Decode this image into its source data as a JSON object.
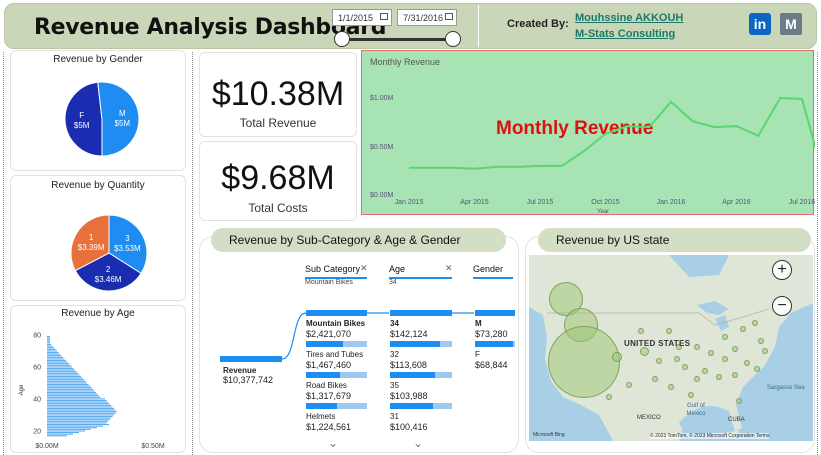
{
  "header": {
    "title": "Revenue Analysis Dashboard",
    "date_from": "1/1/2015",
    "date_to": "7/31/2016",
    "created_by_label": "Created By:",
    "creator_name": "Mouhssine AKKOUH",
    "creator_company": "M-Stats Consulting",
    "linkedin_glyph": "in",
    "mstats_glyph": "M"
  },
  "gender_card": {
    "title": "Revenue by Gender",
    "slices": [
      {
        "label": "F",
        "value_label": "$5M",
        "value": 5,
        "color": "#1a2db0"
      },
      {
        "label": "M",
        "value_label": "$5M",
        "value": 5.38,
        "color": "#1e8cf0"
      }
    ]
  },
  "quantity_card": {
    "title": "Revenue by Quantity",
    "slices": [
      {
        "label": "1",
        "value_label": "$3.39M",
        "value": 3.39,
        "color": "#e8703a"
      },
      {
        "label": "2",
        "value_label": "$3.46M",
        "value": 3.46,
        "color": "#1a2db0"
      },
      {
        "label": "3",
        "value_label": "$3.53M",
        "value": 3.53,
        "color": "#1e8cf0"
      }
    ]
  },
  "age_card": {
    "title": "Revenue by Age",
    "ylabel": "Age",
    "y_ticks": [
      "80",
      "60",
      "40",
      "20"
    ],
    "x_ticks": [
      "$0.00M",
      "$0.50M"
    ]
  },
  "kpis": {
    "total_revenue": {
      "value": "$10.38M",
      "label": "Total Revenue"
    },
    "total_costs": {
      "value": "$9.68M",
      "label": "Total Costs"
    }
  },
  "monthly_card": {
    "title": "Monthly Revenue",
    "overlay_title": "Monthly Revenue",
    "xlabel": "Year",
    "y_ticks": [
      "$1.00M",
      "$0.50M",
      "$0.00M"
    ],
    "x_ticks": [
      "Jan 2015",
      "Apr 2015",
      "Jul 2015",
      "Oct 2015",
      "Jan 2016",
      "Apr 2016",
      "Jul 2016"
    ]
  },
  "subcat_card": {
    "title": "Revenue by Sub-Category & Age & Gender",
    "columns": [
      {
        "header": "Sub Category",
        "filter": "Mountain Bikes"
      },
      {
        "header": "Age",
        "filter": "34"
      },
      {
        "header": "Gender",
        "filter": ""
      }
    ],
    "root": {
      "label": "Revenue",
      "value": "$10,377,742"
    },
    "subcategories": [
      {
        "label": "Mountain Bikes",
        "value": "$2,421,070",
        "fill": 1.0
      },
      {
        "label": "Tires and Tubes",
        "value": "$1,467,460",
        "fill": 0.6
      },
      {
        "label": "Road Bikes",
        "value": "$1,317,679",
        "fill": 0.55
      },
      {
        "label": "Helmets",
        "value": "$1,224,561",
        "fill": 0.5
      }
    ],
    "ages": [
      {
        "label": "34",
        "value": "$142,124",
        "fill": 1.0
      },
      {
        "label": "32",
        "value": "$113,608",
        "fill": 0.8
      },
      {
        "label": "35",
        "value": "$103,988",
        "fill": 0.73
      },
      {
        "label": "31",
        "value": "$100,416",
        "fill": 0.7
      }
    ],
    "genders": [
      {
        "label": "M",
        "value": "$73,280",
        "fill": 1.0
      },
      {
        "label": "F",
        "value": "$68,844",
        "fill": 0.94
      }
    ]
  },
  "map_card": {
    "title": "Revenue by US state",
    "country_label": "UNITED STATES",
    "labels": [
      "MEXICO",
      "CUBA",
      "Gulf of Mexico",
      "Sargasso Sea"
    ],
    "attribution": "© 2023 TomTom, © 2023 Microsoft Corporation Terms",
    "bing": "Microsoft Bing",
    "zoom_in": "+",
    "zoom_out": "−"
  },
  "colors": {
    "header_bg": "#c9d7b8",
    "accent_blue": "#1e8cf0",
    "dark_blue": "#1a2db0",
    "orange": "#e8703a",
    "monthly_bg": "#a8e3b4",
    "overlay_red": "#e01010"
  }
}
